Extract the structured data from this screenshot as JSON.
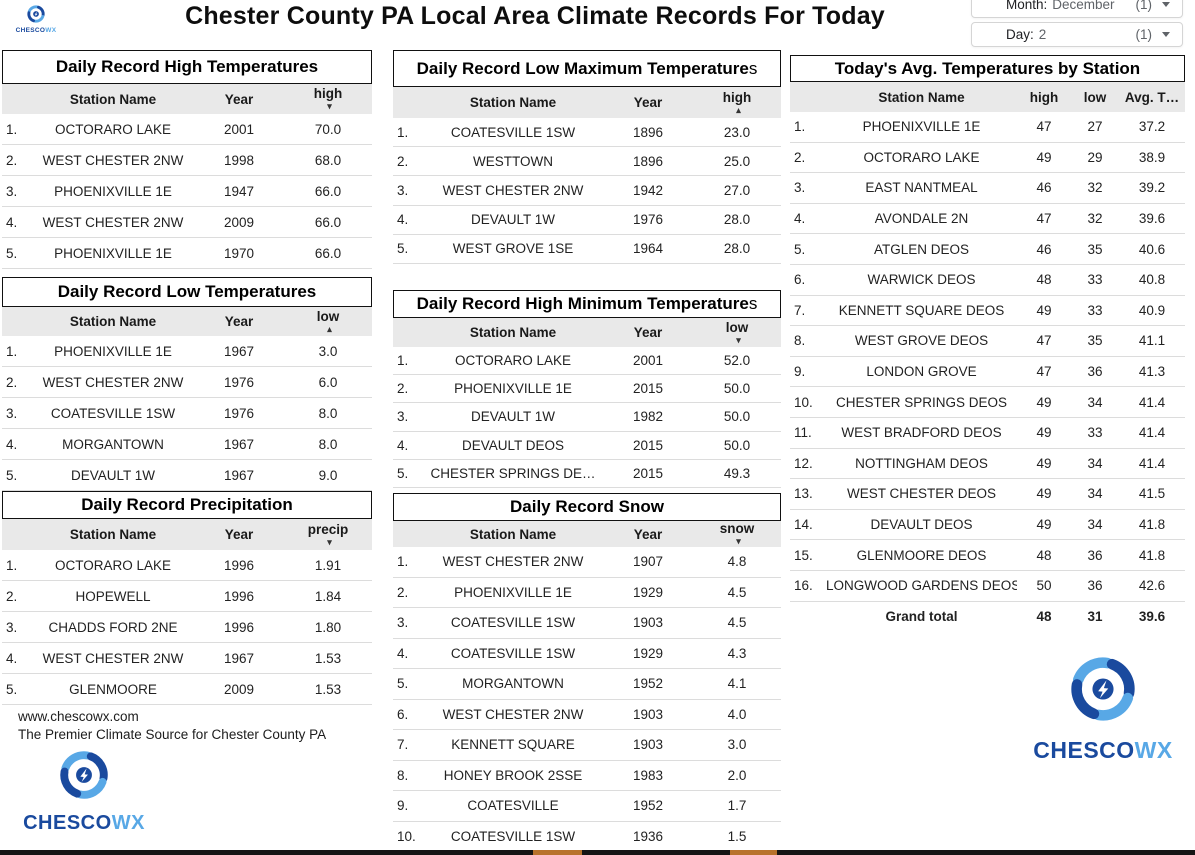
{
  "page": {
    "title": "Chester County PA Local Area Climate Records For Today",
    "brand": {
      "primary": "CHESCO",
      "secondary": "WX"
    }
  },
  "filters": {
    "month": {
      "label": "Month:",
      "value": "December",
      "count": "(1)"
    },
    "day": {
      "label": "Day:",
      "value": "2",
      "count": "(1)"
    }
  },
  "tables": {
    "record_high": {
      "title": "Daily Record High Temperatures",
      "title_suffix": "",
      "columns": [
        "Station Name",
        "Year",
        "high"
      ],
      "sort": {
        "column": 2,
        "dir": "desc"
      },
      "rows": [
        [
          "OCTORARO LAKE",
          "2001",
          "70.0"
        ],
        [
          "WEST CHESTER 2NW",
          "1998",
          "68.0"
        ],
        [
          "PHOENIXVILLE 1E",
          "1947",
          "66.0"
        ],
        [
          "WEST CHESTER 2NW",
          "2009",
          "66.0"
        ],
        [
          "PHOENIXVILLE 1E",
          "1970",
          "66.0"
        ]
      ]
    },
    "record_low": {
      "title": "Daily Record Low Temperatures",
      "title_suffix": "",
      "columns": [
        "Station Name",
        "Year",
        "low"
      ],
      "sort": {
        "column": 2,
        "dir": "asc"
      },
      "rows": [
        [
          "PHOENIXVILLE 1E",
          "1967",
          "3.0"
        ],
        [
          "WEST CHESTER 2NW",
          "1976",
          "6.0"
        ],
        [
          "COATESVILLE 1SW",
          "1976",
          "8.0"
        ],
        [
          "MORGANTOWN",
          "1967",
          "8.0"
        ],
        [
          "DEVAULT 1W",
          "1967",
          "9.0"
        ]
      ]
    },
    "precip": {
      "title": "Daily Record Precipitation",
      "title_suffix": "",
      "columns": [
        "Station Name",
        "Year",
        "precip"
      ],
      "sort": {
        "column": 2,
        "dir": "desc"
      },
      "rows": [
        [
          "OCTORARO LAKE",
          "1996",
          "1.91"
        ],
        [
          "HOPEWELL",
          "1996",
          "1.84"
        ],
        [
          "CHADDS FORD 2NE",
          "1996",
          "1.80"
        ],
        [
          "WEST CHESTER 2NW",
          "1967",
          "1.53"
        ],
        [
          "GLENMOORE",
          "2009",
          "1.53"
        ]
      ]
    },
    "low_max": {
      "title": "Daily Record Low Maximum Temperature",
      "title_suffix": "s",
      "columns": [
        "Station Name",
        "Year",
        "high"
      ],
      "sort": {
        "column": 2,
        "dir": "asc"
      },
      "rows": [
        [
          "COATESVILLE 1SW",
          "1896",
          "23.0"
        ],
        [
          "WESTTOWN",
          "1896",
          "25.0"
        ],
        [
          "WEST CHESTER 2NW",
          "1942",
          "27.0"
        ],
        [
          "DEVAULT 1W",
          "1976",
          "28.0"
        ],
        [
          "WEST GROVE 1SE",
          "1964",
          "28.0"
        ]
      ]
    },
    "high_min": {
      "title": "Daily Record High Minimum Temperature",
      "title_suffix": "s",
      "columns": [
        "Station Name",
        "Year",
        "low"
      ],
      "sort": {
        "column": 2,
        "dir": "desc"
      },
      "rows": [
        [
          "OCTORARO LAKE",
          "2001",
          "52.0"
        ],
        [
          "PHOENIXVILLE 1E",
          "2015",
          "50.0"
        ],
        [
          "DEVAULT 1W",
          "1982",
          "50.0"
        ],
        [
          "DEVAULT DEOS",
          "2015",
          "50.0"
        ],
        [
          "CHESTER SPRINGS DE…",
          "2015",
          "49.3"
        ]
      ]
    },
    "snow": {
      "title": "Daily Record Snow",
      "title_suffix": "",
      "columns": [
        "Station Name",
        "Year",
        "snow"
      ],
      "sort": {
        "column": 2,
        "dir": "desc"
      },
      "rows": [
        [
          "WEST CHESTER 2NW",
          "1907",
          "4.8"
        ],
        [
          "PHOENIXVILLE 1E",
          "1929",
          "4.5"
        ],
        [
          "COATESVILLE 1SW",
          "1903",
          "4.5"
        ],
        [
          "COATESVILLE 1SW",
          "1929",
          "4.3"
        ],
        [
          "MORGANTOWN",
          "1952",
          "4.1"
        ],
        [
          "WEST CHESTER 2NW",
          "1903",
          "4.0"
        ],
        [
          "KENNETT SQUARE",
          "1903",
          "3.0"
        ],
        [
          "HONEY BROOK 2SSE",
          "1983",
          "2.0"
        ],
        [
          "COATESVILLE",
          "1952",
          "1.7"
        ],
        [
          "COATESVILLE 1SW",
          "1936",
          "1.5"
        ]
      ]
    },
    "avg_today": {
      "title": "Today's Avg. Temperatures by Station",
      "title_suffix": "",
      "columns": [
        "Station Name",
        "high",
        "low",
        "Avg. T…"
      ],
      "rows": [
        [
          "PHOENIXVILLE 1E",
          "47",
          "27",
          "37.2"
        ],
        [
          "OCTORARO LAKE",
          "49",
          "29",
          "38.9"
        ],
        [
          "EAST NANTMEAL",
          "46",
          "32",
          "39.2"
        ],
        [
          "AVONDALE 2N",
          "47",
          "32",
          "39.6"
        ],
        [
          "ATGLEN DEOS",
          "46",
          "35",
          "40.6"
        ],
        [
          "WARWICK DEOS",
          "48",
          "33",
          "40.8"
        ],
        [
          "KENNETT SQUARE DEOS",
          "49",
          "33",
          "40.9"
        ],
        [
          "WEST GROVE DEOS",
          "47",
          "35",
          "41.1"
        ],
        [
          "LONDON GROVE",
          "47",
          "36",
          "41.3"
        ],
        [
          "CHESTER SPRINGS DEOS",
          "49",
          "34",
          "41.4"
        ],
        [
          "WEST BRADFORD DEOS",
          "49",
          "33",
          "41.4"
        ],
        [
          "NOTTINGHAM DEOS",
          "49",
          "34",
          "41.4"
        ],
        [
          "WEST CHESTER DEOS",
          "49",
          "34",
          "41.5"
        ],
        [
          "DEVAULT DEOS",
          "49",
          "34",
          "41.8"
        ],
        [
          "GLENMOORE DEOS",
          "48",
          "36",
          "41.8"
        ],
        [
          "LONGWOOD GARDENS DEOS",
          "50",
          "36",
          "42.6"
        ]
      ],
      "grand_total": {
        "label": "Grand total",
        "values": [
          "48",
          "31",
          "39.6"
        ]
      }
    }
  },
  "footer": {
    "website": "www.chescowx.com",
    "tagline": "The Premier Climate Source for Chester County PA"
  },
  "colors": {
    "brand_dark_blue": "#1a4a9e",
    "brand_light_blue": "#58a8e6",
    "header_row_bg": "#e9e9e9",
    "strip_black": "#151515",
    "strip_orange": "#b8722c"
  }
}
